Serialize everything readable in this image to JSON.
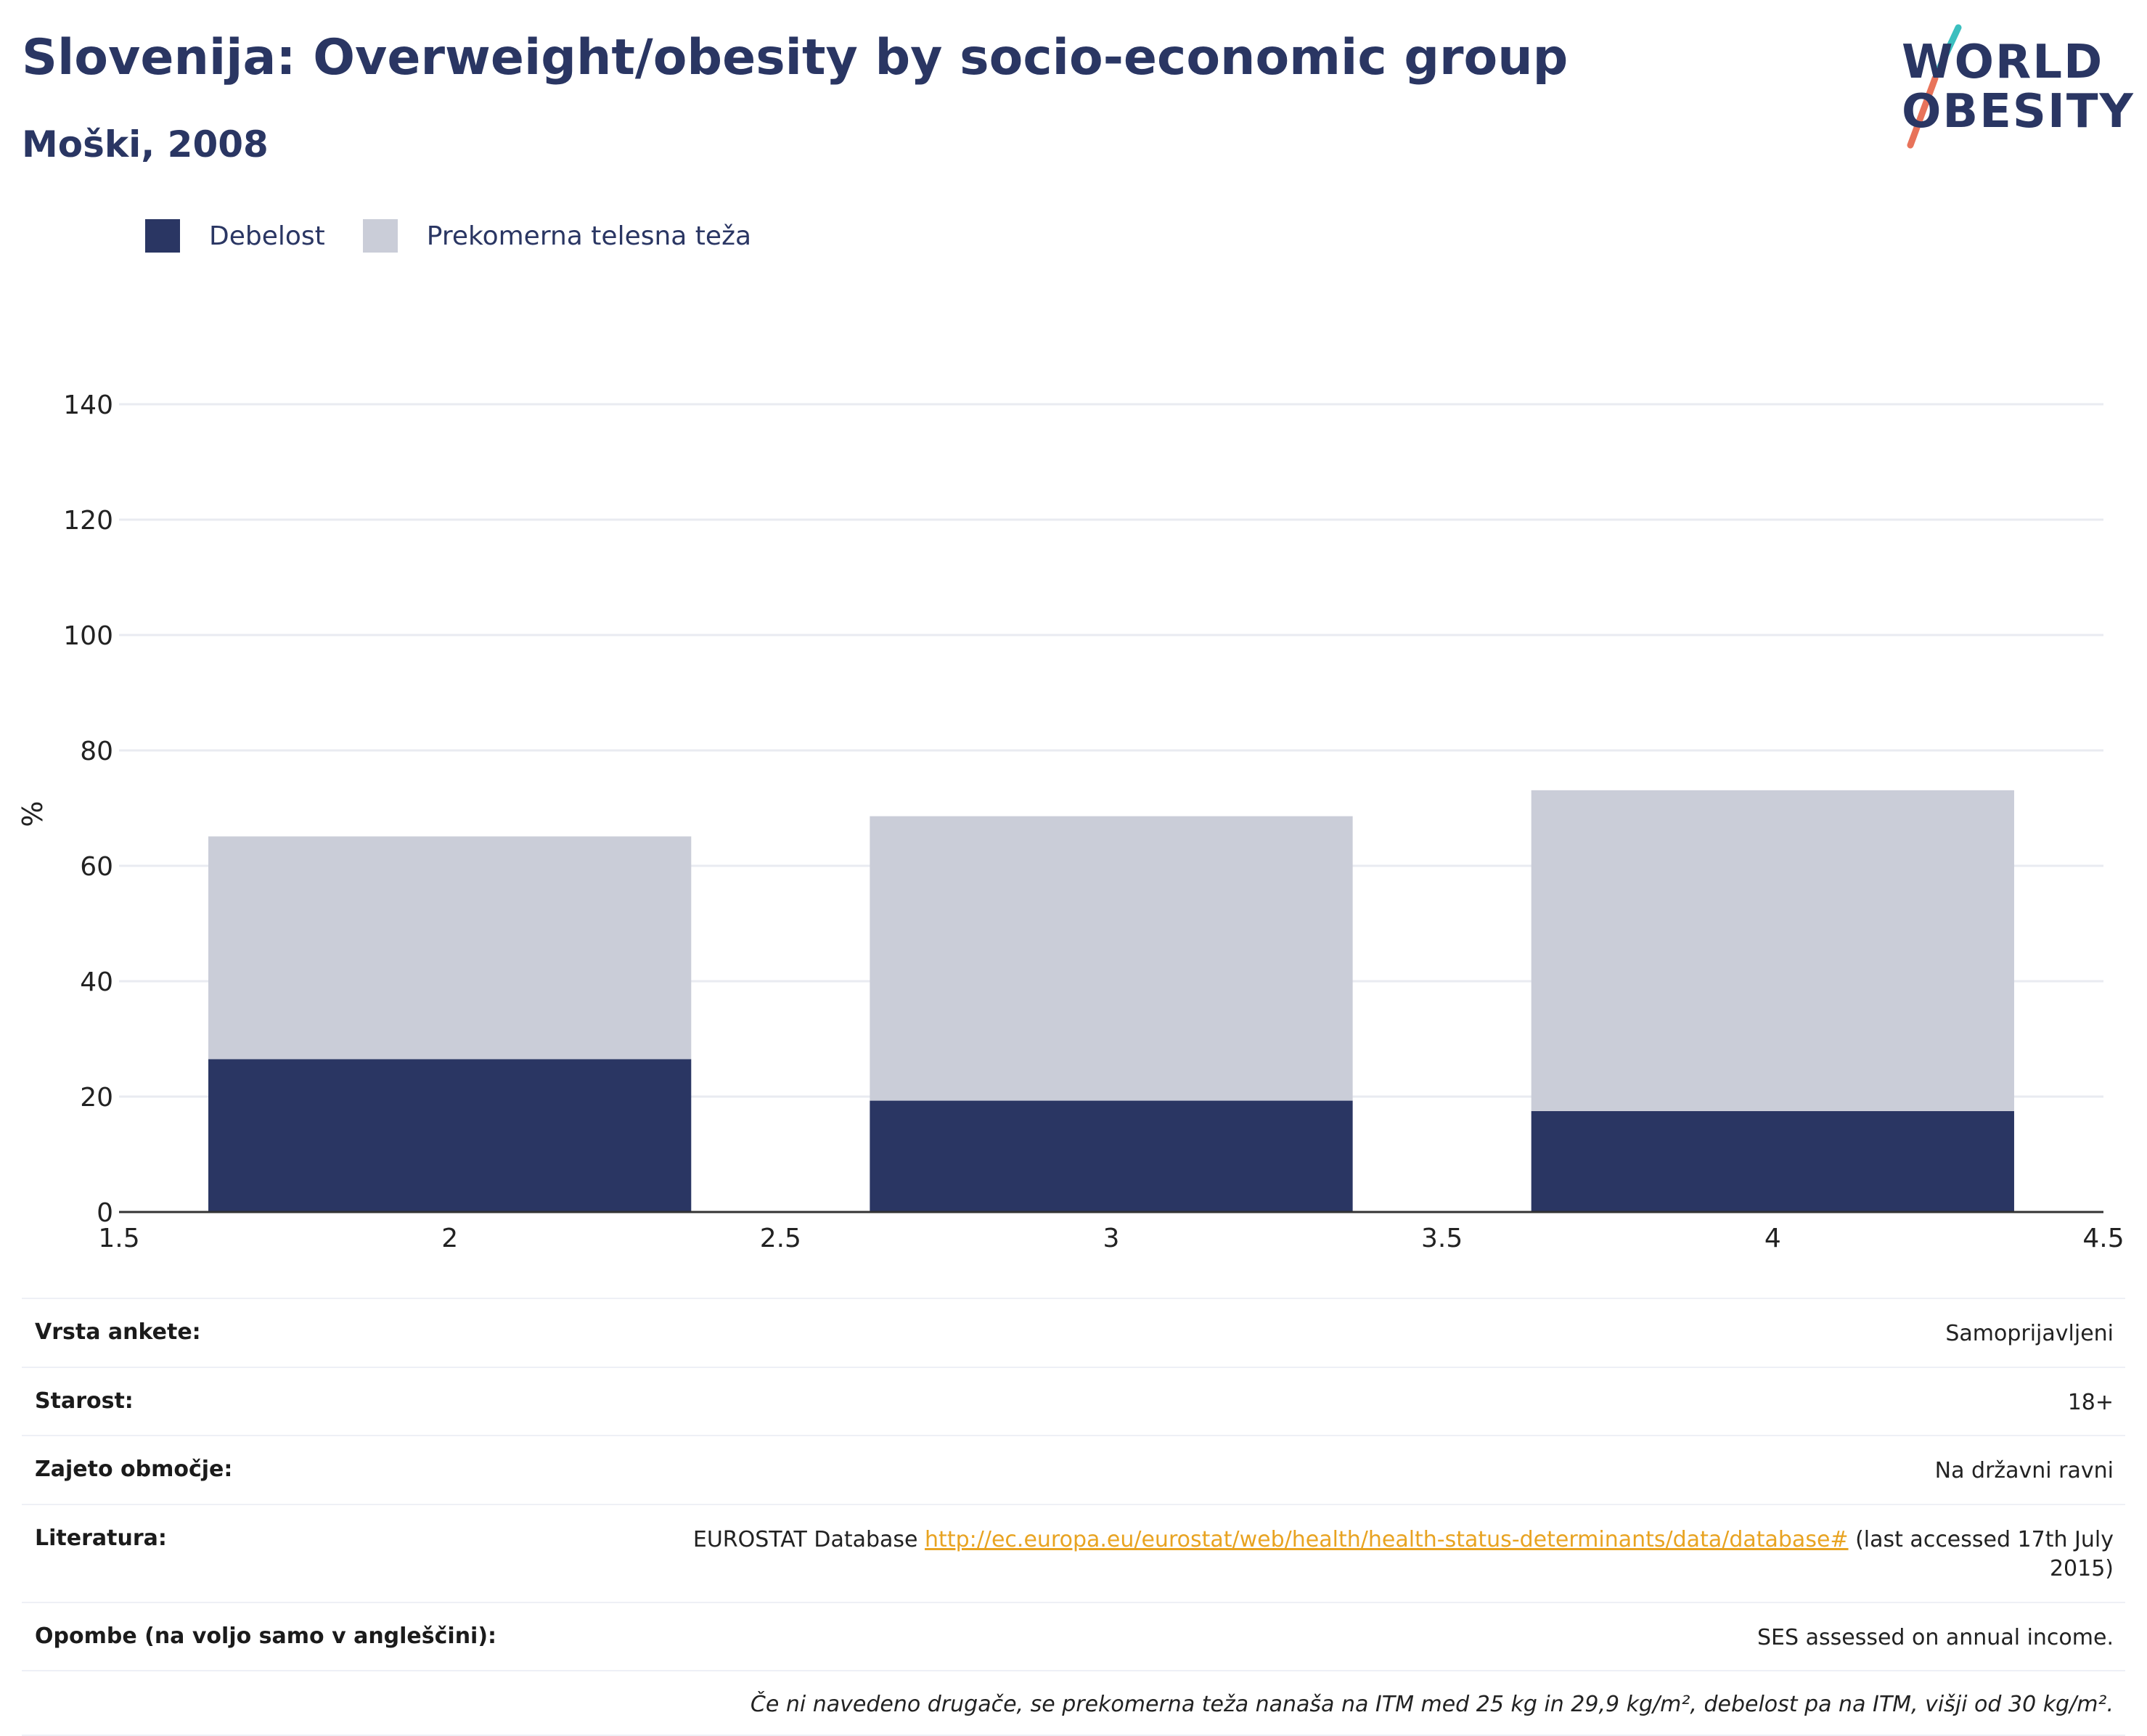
{
  "header": {
    "title": "Slovenija: Overweight/obesity by socio-economic group",
    "subtitle": "Moški, 2008"
  },
  "logo": {
    "line1": "WORLD",
    "line2": "OBESITY",
    "slash_colors": [
      "#3bbfbf",
      "#e8735a"
    ]
  },
  "legend": [
    {
      "label": "Debelost",
      "color": "#2a3663"
    },
    {
      "label": "Prekomerna telesna teža",
      "color": "#cacdd8"
    }
  ],
  "chart_data": {
    "type": "bar",
    "stacked": true,
    "title": "",
    "xlabel": "",
    "ylabel": "%",
    "x": [
      2,
      3,
      4
    ],
    "xlim": [
      1.5,
      4.5
    ],
    "ylim": [
      0,
      140
    ],
    "x_ticks": [
      "1.5",
      "2",
      "2.5",
      "3",
      "3.5",
      "4",
      "4.5"
    ],
    "y_ticks": [
      "0",
      "20",
      "40",
      "60",
      "80",
      "100",
      "120",
      "140"
    ],
    "grid": true,
    "legend_position": "top-left",
    "series": [
      {
        "name": "Debelost",
        "color": "#2a3663",
        "values": [
          26.5,
          19.3,
          17.5
        ]
      },
      {
        "name": "Prekomerna telesna teža",
        "color": "#cacdd8",
        "values": [
          38.6,
          49.3,
          55.6
        ]
      }
    ]
  },
  "info": {
    "survey_type": {
      "label": "Vrsta ankete:",
      "value": "Samoprijavljeni"
    },
    "age": {
      "label": "Starost:",
      "value": "18+"
    },
    "area": {
      "label": "Zajeto območje:",
      "value": "Na državni ravni"
    },
    "references": {
      "label": "Literatura:",
      "prefix": "EUROSTAT Database ",
      "link": "http://ec.europa.eu/eurostat/web/health/health-status-determinants/data/database#",
      "suffix": " (last accessed 17th July 2015)"
    },
    "notes": {
      "label": "Opombe (na voljo samo v angleščini):",
      "value": "SES assessed on annual income."
    },
    "footnote": "Če ni navedeno drugače, se prekomerna teža nanaša na ITM med 25 kg in 29,9 kg/m², debelost pa na ITM, višji od 30 kg/m²."
  }
}
